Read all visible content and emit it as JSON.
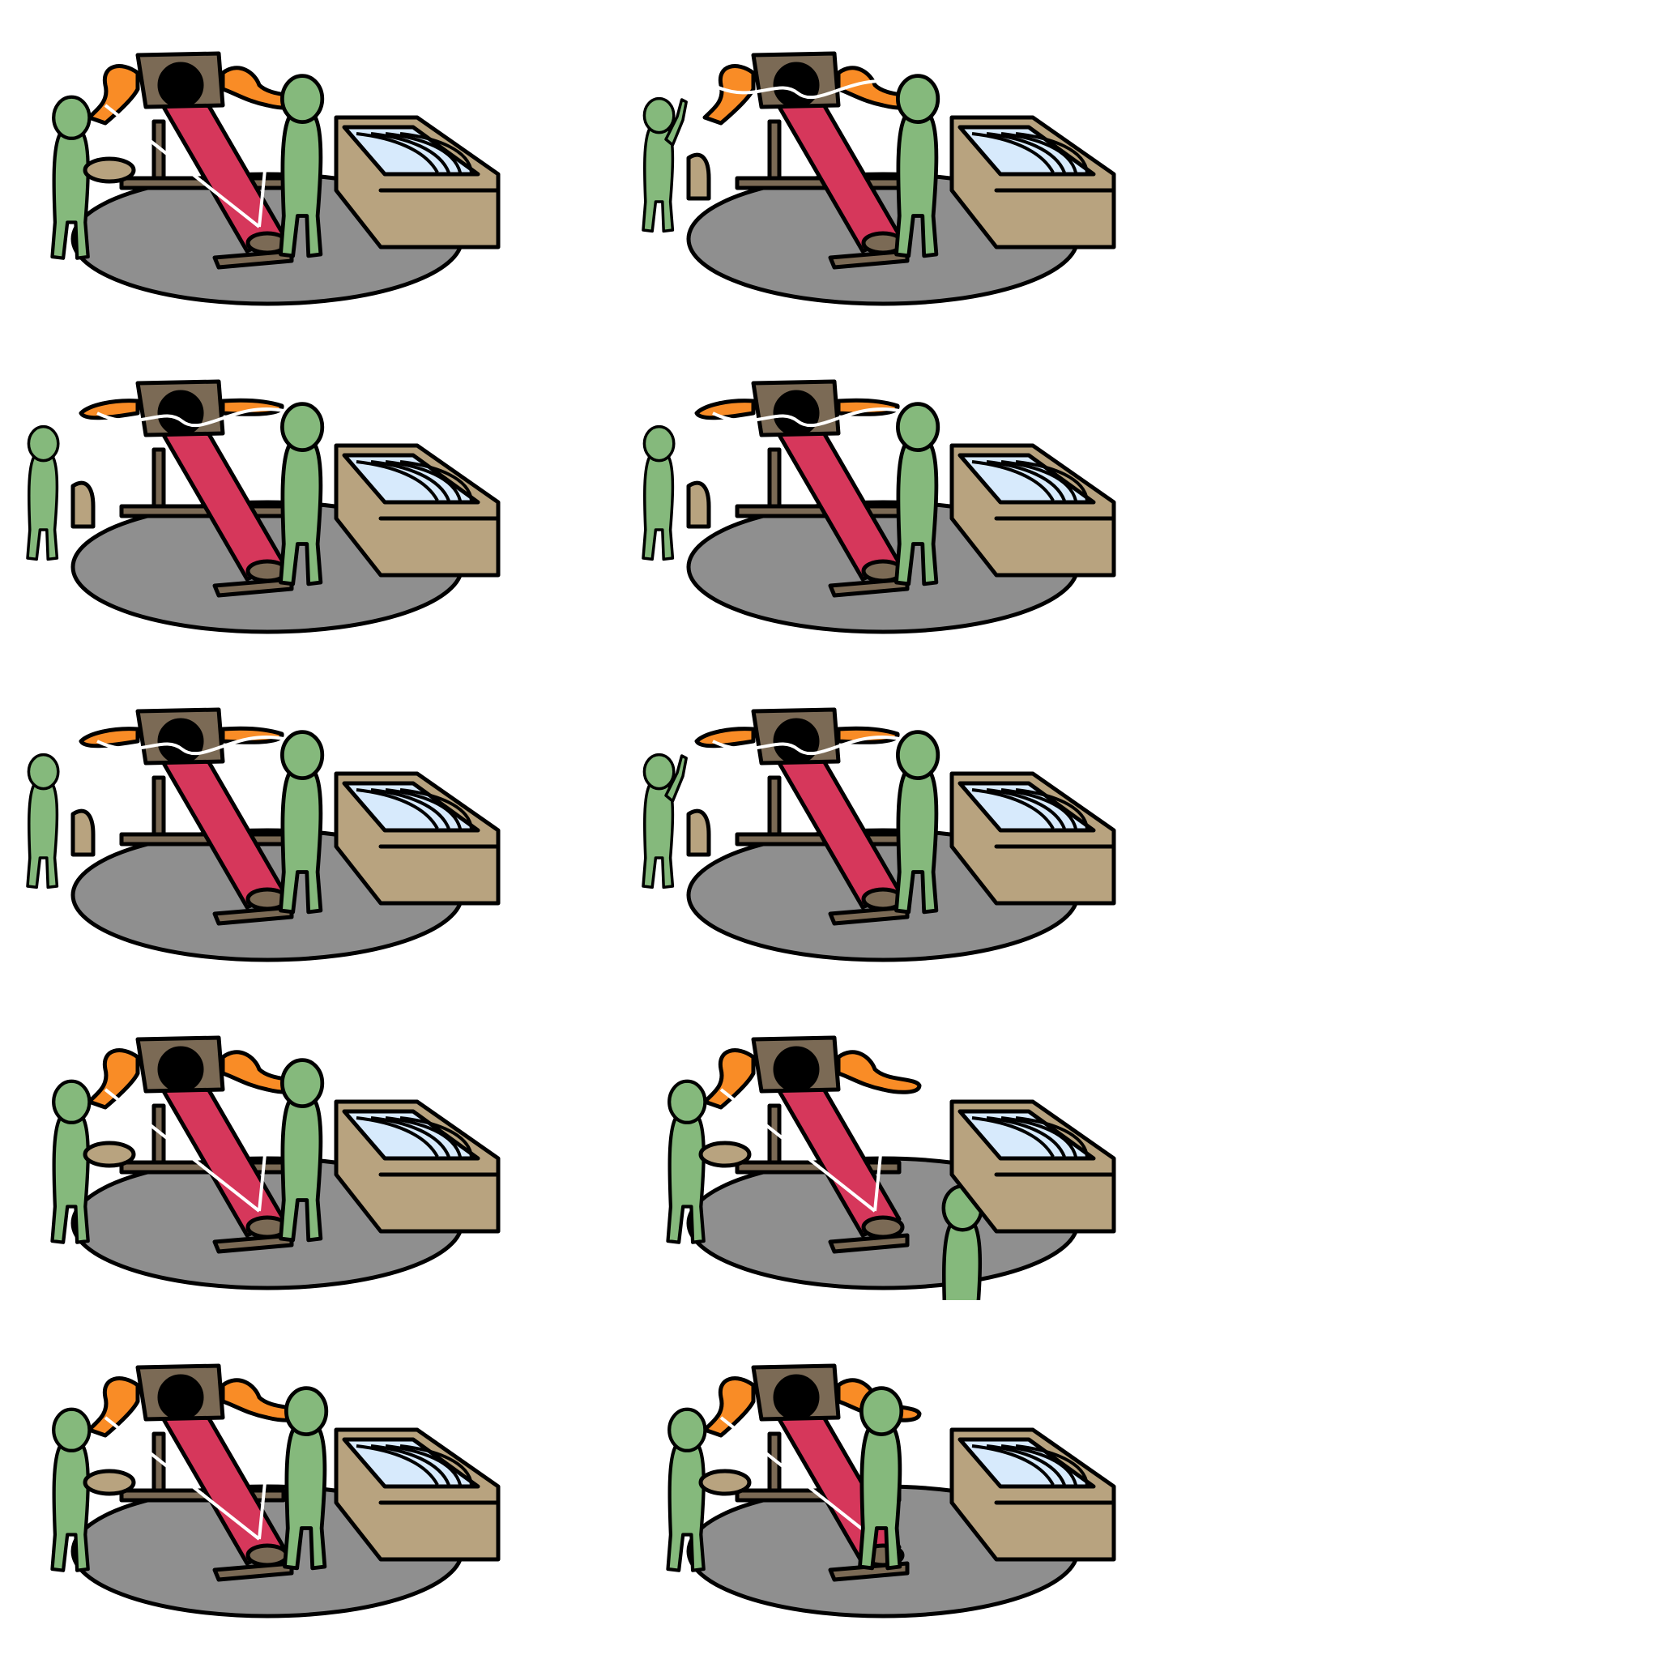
{
  "colors": {
    "background": "#ffffff",
    "outline": "#000000",
    "figure_green": "#85b97c",
    "barrel_red": "#d6375b",
    "arm_orange": "#f98c26",
    "frame_brown": "#7b6a55",
    "disc_gray": "#8f8f8f",
    "crate_tan": "#b8a37f",
    "rope_white": "#ffffff",
    "blade_blue": "#d7eafc"
  },
  "panels": [
    {
      "id": "p1",
      "stage": "winding",
      "arm_pose": "raised",
      "left_figure": "cranking",
      "right_figure": "standing",
      "highlight": "barrel-tip"
    },
    {
      "id": "p2",
      "stage": "spinning",
      "arm_pose": "raised",
      "left_figure": "cheering",
      "right_figure": "standing",
      "highlight": "barrel-mid"
    },
    {
      "id": "p3",
      "stage": "spinning",
      "arm_pose": "flat",
      "left_figure": "standing",
      "right_figure": "standing",
      "highlight": "none"
    },
    {
      "id": "p4",
      "stage": "spinning",
      "arm_pose": "flat",
      "left_figure": "standing",
      "right_figure": "standing",
      "highlight": "none"
    },
    {
      "id": "p5",
      "stage": "slowing",
      "arm_pose": "flat",
      "left_figure": "standing",
      "right_figure": "standing",
      "highlight": "none"
    },
    {
      "id": "p6",
      "stage": "slowing",
      "arm_pose": "flat",
      "left_figure": "cheering",
      "right_figure": "standing",
      "highlight": "none"
    },
    {
      "id": "p7",
      "stage": "winding",
      "arm_pose": "raised",
      "left_figure": "cranking",
      "right_figure": "standing",
      "highlight": "none"
    },
    {
      "id": "p8",
      "stage": "loading",
      "arm_pose": "raised",
      "left_figure": "cranking",
      "right_figure": "at-crate",
      "highlight": "none"
    },
    {
      "id": "p9",
      "stage": "loading",
      "arm_pose": "raised",
      "left_figure": "cranking",
      "right_figure": "carrying",
      "highlight": "none"
    },
    {
      "id": "p10",
      "stage": "loading",
      "arm_pose": "raised",
      "left_figure": "cranking",
      "right_figure": "inserting",
      "highlight": "none"
    }
  ]
}
